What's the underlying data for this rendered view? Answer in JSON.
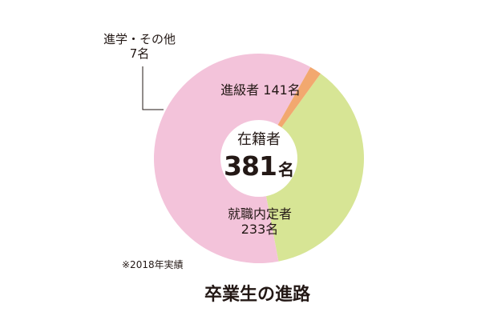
{
  "chart_data": {
    "type": "pie",
    "style": "donut",
    "title": "卒業生の進路",
    "note": "※2018年実績",
    "center": {
      "label": "在籍者",
      "value": "381",
      "unit": "名"
    },
    "slices": [
      {
        "name": "進級者",
        "value": 141,
        "value_text": "141名",
        "color": "#d7e595"
      },
      {
        "name": "就職内定者",
        "value": 233,
        "value_text": "233名",
        "color": "#f3c3da"
      },
      {
        "name": "進学・その他",
        "value": 7,
        "value_text": "7名",
        "color": "#f2a86f"
      }
    ],
    "legend": "none"
  }
}
